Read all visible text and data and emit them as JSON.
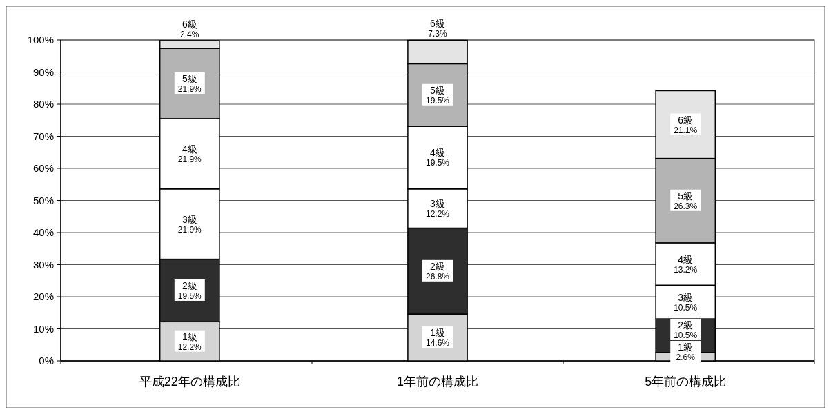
{
  "chart_data": {
    "type": "bar",
    "stacked": true,
    "categories": [
      "平成22年の構成比",
      "1年前の構成比",
      "5年前の構成比"
    ],
    "series": [
      {
        "name": "1級",
        "color": "#d4d4d4",
        "values": [
          12.2,
          14.6,
          2.6
        ],
        "value_labels": [
          "12.2%",
          "14.6%",
          "2.6%"
        ]
      },
      {
        "name": "2級",
        "color": "#2e2e2e",
        "values": [
          19.5,
          26.8,
          10.5
        ],
        "value_labels": [
          "19.5%",
          "26.8%",
          "10.5%"
        ]
      },
      {
        "name": "3級",
        "color": "#ffffff",
        "values": [
          21.9,
          12.2,
          10.5
        ],
        "value_labels": [
          "21.9%",
          "12.2%",
          "10.5%"
        ]
      },
      {
        "name": "4級",
        "color": "#ffffff",
        "values": [
          21.9,
          19.5,
          13.2
        ],
        "value_labels": [
          "21.9%",
          "19.5%",
          "13.2%"
        ]
      },
      {
        "name": "5級",
        "color": "#b4b4b4",
        "values": [
          21.9,
          19.5,
          26.3
        ],
        "value_labels": [
          "21.9%",
          "19.5%",
          "26.3%"
        ]
      },
      {
        "name": "6級",
        "color": "#e4e4e4",
        "values": [
          2.4,
          7.3,
          21.1
        ],
        "value_labels": [
          "2.4%",
          "7.3%",
          "21.1%"
        ]
      }
    ],
    "ylim": [
      0,
      100
    ],
    "yticks": [
      {
        "value": 0,
        "label": "0%"
      },
      {
        "value": 10,
        "label": "10%"
      },
      {
        "value": 20,
        "label": "20%"
      },
      {
        "value": 30,
        "label": "30%"
      },
      {
        "value": 40,
        "label": "40%"
      },
      {
        "value": 50,
        "label": "50%"
      },
      {
        "value": 60,
        "label": "60%"
      },
      {
        "value": 70,
        "label": "70%"
      },
      {
        "value": 80,
        "label": "80%"
      },
      {
        "value": 90,
        "label": "90%"
      },
      {
        "value": 100,
        "label": "100%"
      }
    ],
    "grid": "y"
  }
}
